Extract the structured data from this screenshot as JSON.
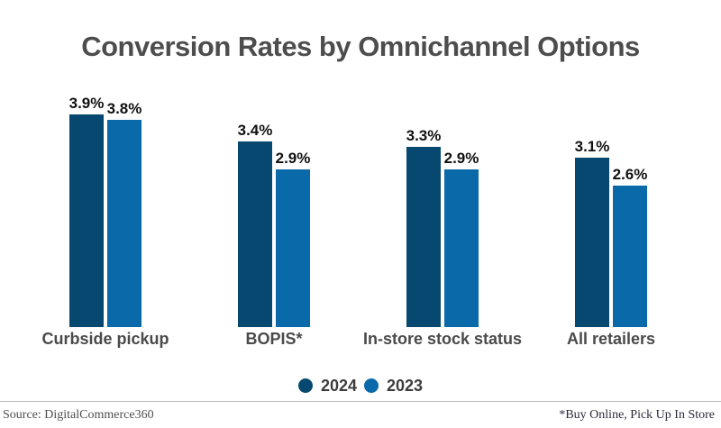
{
  "title": "Conversion Rates by Omnichannel Options",
  "chart_data": {
    "type": "bar",
    "title": "Conversion Rates by Omnichannel Options",
    "categories": [
      "Curbside pickup",
      "BOPIS*",
      "In-store stock status",
      "All retailers"
    ],
    "series": [
      {
        "name": "2024",
        "color": "#06486f",
        "values": [
          3.9,
          3.4,
          3.3,
          3.1
        ]
      },
      {
        "name": "2023",
        "color": "#0a69a8",
        "values": [
          3.8,
          2.9,
          2.9,
          2.6
        ]
      }
    ],
    "value_suffix": "%",
    "value_decimals": 1,
    "data_labels_visible": true,
    "ylim": [
      0,
      4.3
    ],
    "grid": false,
    "axes_visible": false,
    "legend_position": "bottom-center"
  },
  "legend": {
    "items": [
      {
        "label": "2024",
        "color": "#06486f"
      },
      {
        "label": "2023",
        "color": "#0a69a8"
      }
    ]
  },
  "footer": {
    "source": "Source: DigitalCommerce360",
    "footnote": "*Buy Online, Pick Up In Store"
  },
  "colors": {
    "background": "#ffffff",
    "title_text": "#4d4d4d",
    "category_text": "#4a4a4a",
    "value_text": "#111111",
    "legend_text": "#3c3c3c",
    "divider": "#bdbdbd",
    "footer_source_text": "#4f4f4f",
    "footer_note_text": "#2b2b3b",
    "series_2024": "#06486f",
    "series_2023": "#0a69a8"
  }
}
